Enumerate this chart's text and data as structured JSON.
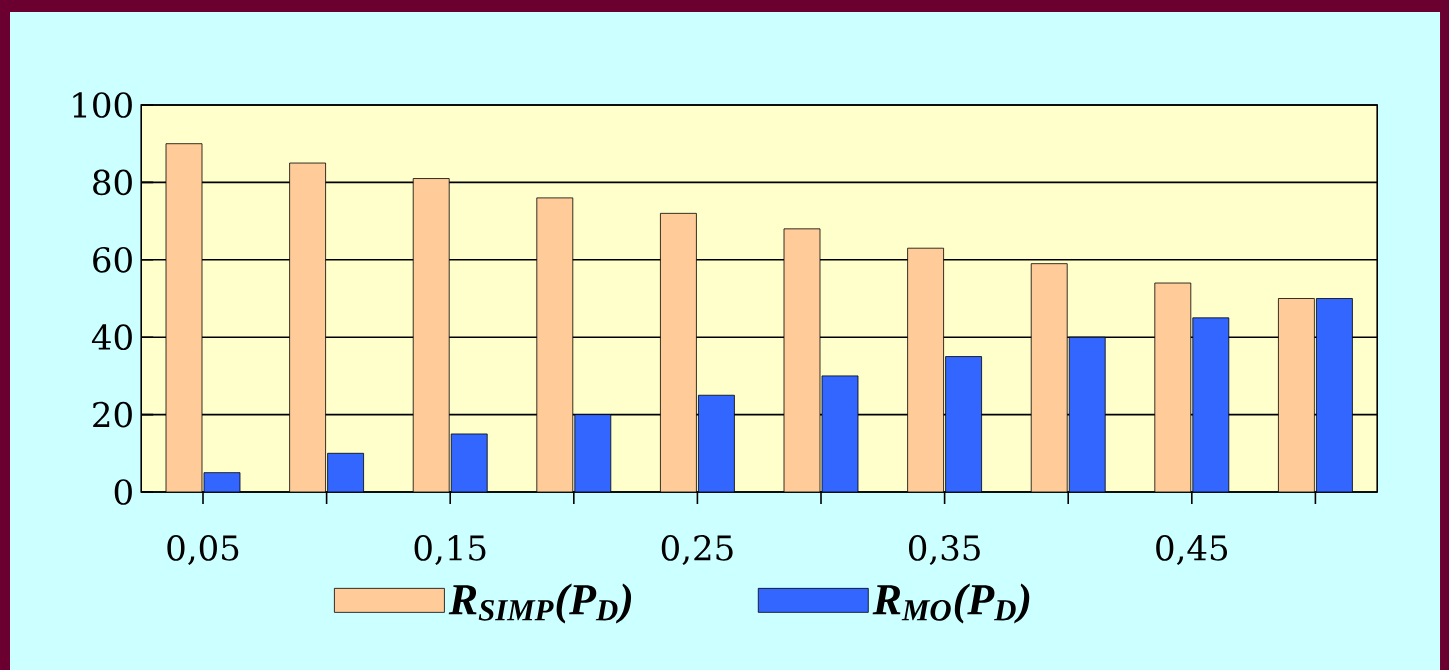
{
  "chart_data": {
    "type": "bar",
    "categories": [
      "0,05",
      null,
      "0,15",
      null,
      "0,25",
      null,
      "0,35",
      null,
      "0,45",
      null
    ],
    "series": [
      {
        "name": "R$_{SIMP}$(P$_{D}$)",
        "color": "#ffcc99",
        "values": [
          90,
          85,
          81,
          76,
          72,
          68,
          63,
          59,
          54,
          50
        ]
      },
      {
        "name": "R$_{MO}$(P$_{D}$)",
        "color": "#3366ff",
        "values": [
          5,
          10,
          15,
          20,
          25,
          30,
          35,
          40,
          45,
          50
        ]
      }
    ],
    "ylim": [
      0,
      100
    ],
    "yticks": [
      0,
      20,
      40,
      60,
      80,
      100
    ],
    "grid": "y",
    "legend": "bottom"
  }
}
